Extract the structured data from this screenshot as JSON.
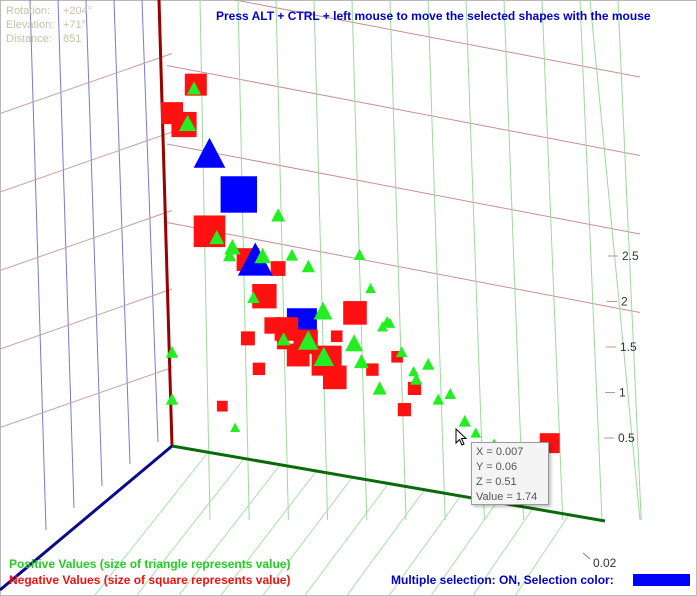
{
  "view_info": {
    "rotation_label": "Rotation:",
    "rotation_value": "+204°",
    "elevation_label": "Elevation:",
    "elevation_value": "+71°",
    "distance_label": "Distance:",
    "distance_value": "851"
  },
  "hint": "Press ALT + CTRL + left mouse to move the selected shapes with the mouse",
  "legend": {
    "positive": "Positive Values (size of triangle represents value)",
    "negative": "Negative Values (size of square represents value)"
  },
  "selection": {
    "text": "Multiple selection: ON, Selection  color:",
    "color": "#0000ff"
  },
  "tooltip": {
    "x": "X = 0.007",
    "y": "Y = 0.06",
    "z": "Z = 0.51",
    "value": "Value = 1.74"
  },
  "colors": {
    "positive": "#22ee22",
    "negative": "#ff1111",
    "selected": "#0000ff",
    "z_axis": "#990000",
    "x_axis": "#0a0a8a",
    "y_axis": "#0a6a0a"
  },
  "chart_data": {
    "type": "scatter",
    "z_ticks": [
      "0.5",
      "1",
      "1.5",
      "2",
      "2.5"
    ],
    "x_ticks": [
      "0.02"
    ],
    "grid": true,
    "points": [
      {
        "x": 0.0,
        "y": 0.0,
        "z": 2.12,
        "value": 2.0,
        "sign": "negative"
      },
      {
        "x": 0.002,
        "y": 0.004,
        "z": 2.35,
        "value": 2.0,
        "sign": "negative"
      },
      {
        "x": 0.008,
        "y": 0.003,
        "z": 2.15,
        "value": 2.4,
        "sign": "negative"
      },
      {
        "x": 0.001,
        "y": 0.006,
        "z": 1.42,
        "value": 3.2,
        "sign": "negative"
      },
      {
        "x": 0.002,
        "y": 0.01,
        "z": 1.68,
        "value": 2.2,
        "sign": "negative"
      },
      {
        "x": 0.004,
        "y": 0.011,
        "z": 1.72,
        "value": 3.8,
        "sign": "selected"
      },
      {
        "x": 0.008,
        "y": 0.013,
        "z": 1.36,
        "value": 2.1,
        "sign": "negative"
      },
      {
        "x": 0.004,
        "y": 0.015,
        "z": 1.1,
        "value": 2.3,
        "sign": "negative"
      },
      {
        "x": 0.003,
        "y": 0.017,
        "z": 1.28,
        "value": 1.1,
        "sign": "negative"
      },
      {
        "x": 0.005,
        "y": 0.021,
        "z": 0.98,
        "value": 3.0,
        "sign": "selected"
      },
      {
        "x": 0.008,
        "y": 0.019,
        "z": 0.96,
        "value": 2.2,
        "sign": "negative"
      },
      {
        "x": 0.008,
        "y": 0.022,
        "z": 0.9,
        "value": 2.3,
        "sign": "negative"
      },
      {
        "x": 0.006,
        "y": 0.025,
        "z": 0.78,
        "value": 3.0,
        "sign": "negative"
      },
      {
        "x": 0.002,
        "y": 0.02,
        "z": 0.74,
        "value": 2.1,
        "sign": "negative"
      },
      {
        "x": 0.004,
        "y": 0.026,
        "z": 0.66,
        "value": 2.2,
        "sign": "negative"
      },
      {
        "x": 0.01,
        "y": 0.03,
        "z": 1.16,
        "value": 2.2,
        "sign": "negative"
      },
      {
        "x": 0.007,
        "y": 0.06,
        "z": 0.51,
        "value": 1.74,
        "sign": "negative"
      },
      {
        "x": 0.001,
        "y": 0.012,
        "z": 0.78,
        "value": 1.0,
        "sign": "negative"
      },
      {
        "x": 0.012,
        "y": 0.033,
        "z": 0.84,
        "value": 0.8,
        "sign": "negative"
      },
      {
        "x": 0.003,
        "y": 0.014,
        "z": 0.62,
        "value": 0.8,
        "sign": "negative"
      },
      {
        "x": 0.002,
        "y": 0.016,
        "z": 0.9,
        "value": 1.3,
        "sign": "negative"
      },
      {
        "x": 0.015,
        "y": 0.04,
        "z": 0.8,
        "value": 0.9,
        "sign": "negative"
      },
      {
        "x": 0.012,
        "y": 0.038,
        "z": 0.62,
        "value": 0.9,
        "sign": "negative"
      },
      {
        "x": 0.013,
        "y": 0.037,
        "z": 0.96,
        "value": 0.7,
        "sign": "negative"
      },
      {
        "x": 0.009,
        "y": 0.027,
        "z": 0.98,
        "value": 0.7,
        "sign": "negative"
      },
      {
        "x": 0.001,
        "y": 0.008,
        "z": 0.32,
        "value": 0.6,
        "sign": "negative"
      },
      {
        "x": 0.005,
        "y": 0.018,
        "z": 0.83,
        "value": 0.7,
        "sign": "negative"
      },
      {
        "x": 0.001,
        "y": 0.006,
        "z": 1.92,
        "value": 3.2,
        "sign": "selected"
      },
      {
        "x": 0.007,
        "y": 0.014,
        "z": 1.36,
        "value": 3.6,
        "sign": "selected"
      },
      {
        "x": 0.004,
        "y": 0.003,
        "z": 2.12,
        "value": 1.4,
        "sign": "positive"
      },
      {
        "x": 0.004,
        "y": 0.004,
        "z": 2.35,
        "value": 1.0,
        "sign": "positive"
      },
      {
        "x": 0.01,
        "y": 0.018,
        "z": 1.7,
        "value": 1.0,
        "sign": "positive"
      },
      {
        "x": 0.0,
        "y": 0.007,
        "z": 1.38,
        "value": 1.1,
        "sign": "positive"
      },
      {
        "x": 0.0,
        "y": 0.009,
        "z": 1.28,
        "value": 0.9,
        "sign": "positive"
      },
      {
        "x": 0.004,
        "y": 0.01,
        "z": 1.38,
        "value": 1.3,
        "sign": "positive"
      },
      {
        "x": 0.006,
        "y": 0.015,
        "z": 1.38,
        "value": 1.3,
        "sign": "positive"
      },
      {
        "x": 0.002,
        "y": 0.013,
        "z": 1.06,
        "value": 0.8,
        "sign": "positive"
      },
      {
        "x": 0.009,
        "y": 0.02,
        "z": 1.45,
        "value": 0.8,
        "sign": "positive"
      },
      {
        "x": 0.012,
        "y": 0.023,
        "z": 1.43,
        "value": 0.9,
        "sign": "positive"
      },
      {
        "x": 0.01,
        "y": 0.025,
        "z": 1.14,
        "value": 1.6,
        "sign": "positive"
      },
      {
        "x": 0.004,
        "y": 0.018,
        "z": 0.85,
        "value": 1.0,
        "sign": "positive"
      },
      {
        "x": 0.005,
        "y": 0.022,
        "z": 0.88,
        "value": 1.8,
        "sign": "positive"
      },
      {
        "x": 0.002,
        "y": 0.024,
        "z": 0.76,
        "value": 1.8,
        "sign": "positive"
      },
      {
        "x": 0.011,
        "y": 0.03,
        "z": 0.98,
        "value": 1.5,
        "sign": "positive"
      },
      {
        "x": 0.01,
        "y": 0.031,
        "z": 0.86,
        "value": 1.1,
        "sign": "positive"
      },
      {
        "x": 0.011,
        "y": 0.034,
        "z": 0.72,
        "value": 1.0,
        "sign": "positive"
      },
      {
        "x": 0.014,
        "y": 0.033,
        "z": 1.38,
        "value": 0.6,
        "sign": "positive"
      },
      {
        "x": 0.014,
        "y": 0.036,
        "z": 1.18,
        "value": 0.6,
        "sign": "positive"
      },
      {
        "x": 0.015,
        "y": 0.038,
        "z": 1.02,
        "value": 0.7,
        "sign": "positive"
      },
      {
        "x": 0.016,
        "y": 0.04,
        "z": 0.92,
        "value": 0.6,
        "sign": "positive"
      },
      {
        "x": 0.014,
        "y": 0.042,
        "z": 0.96,
        "value": 0.8,
        "sign": "positive"
      },
      {
        "x": 0.013,
        "y": 0.04,
        "z": 0.84,
        "value": 0.8,
        "sign": "positive"
      },
      {
        "x": 0.017,
        "y": 0.044,
        "z": 0.78,
        "value": 0.7,
        "sign": "positive"
      },
      {
        "x": 0.018,
        "y": 0.046,
        "z": 0.84,
        "value": 0.7,
        "sign": "positive"
      },
      {
        "x": 0.016,
        "y": 0.048,
        "z": 0.66,
        "value": 0.8,
        "sign": "positive"
      },
      {
        "x": 0.018,
        "y": 0.05,
        "z": 0.62,
        "value": 0.6,
        "sign": "positive"
      },
      {
        "x": 0.019,
        "y": 0.053,
        "z": 0.58,
        "value": 0.6,
        "sign": "positive"
      },
      {
        "x": 0.012,
        "y": 0.031,
        "z": 1.56,
        "value": 0.7,
        "sign": "positive"
      },
      {
        "x": 0.017,
        "y": 0.036,
        "z": 1.22,
        "value": 0.6,
        "sign": "positive"
      },
      {
        "x": 0.015,
        "y": 0.035,
        "z": 1.16,
        "value": 0.6,
        "sign": "positive"
      },
      {
        "x": 0.018,
        "y": 0.052,
        "z": 0.5,
        "value": 0.5,
        "sign": "positive"
      },
      {
        "x": 0.0,
        "y": 0.0,
        "z": 0.6,
        "value": 0.8,
        "sign": "positive"
      },
      {
        "x": 0.0,
        "y": 0.0,
        "z": 0.3,
        "value": 0.8,
        "sign": "positive"
      },
      {
        "x": 0.001,
        "y": 0.01,
        "z": 0.2,
        "value": 0.5,
        "sign": "positive"
      }
    ]
  }
}
